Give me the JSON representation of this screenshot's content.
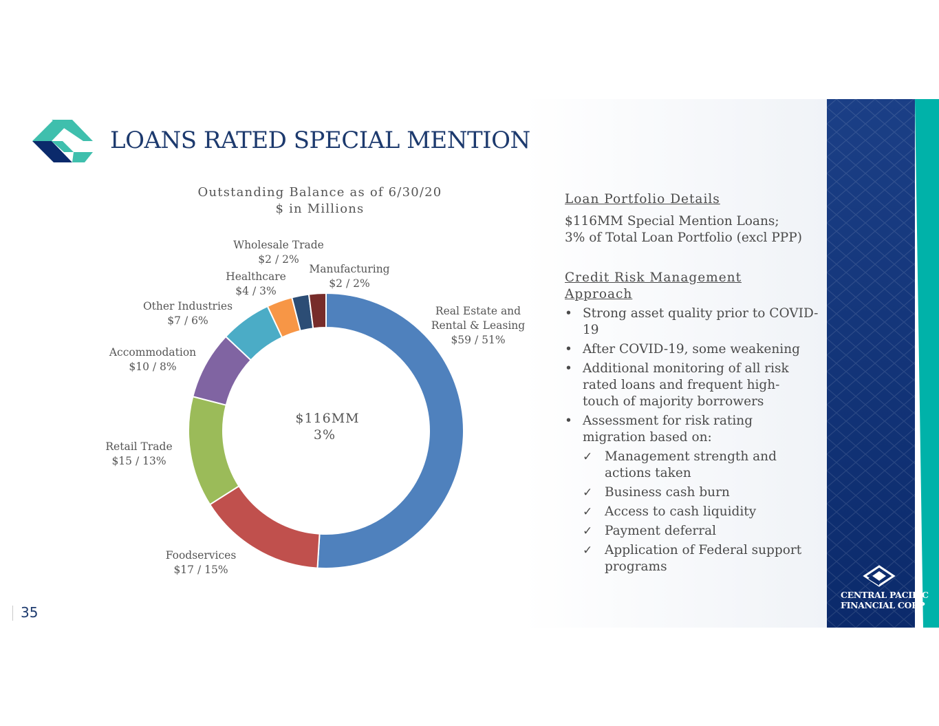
{
  "slide": {
    "title": "LOANS RATED SPECIAL MENTION",
    "page_number": "35"
  },
  "chart_data": {
    "type": "pie",
    "title": "Outstanding Balance as of 6/30/20",
    "subtitle": "$ in Millions",
    "center_label": [
      "$116MM",
      "3%"
    ],
    "unit": "$ in Millions",
    "slices": [
      {
        "name": "Real Estate and Rental & Leasing",
        "label_lines": [
          "Real Estate and",
          "Rental & Leasing",
          "$59 / 51%"
        ],
        "value": 59,
        "percent": 51,
        "color": "#4f81bd"
      },
      {
        "name": "Foodservices",
        "label_lines": [
          "Foodservices",
          "$17 / 15%"
        ],
        "value": 17,
        "percent": 15,
        "color": "#c0504d"
      },
      {
        "name": "Retail Trade",
        "label_lines": [
          "Retail Trade",
          "$15 / 13%"
        ],
        "value": 15,
        "percent": 13,
        "color": "#9bbb59"
      },
      {
        "name": "Accommodation",
        "label_lines": [
          "Accommodation",
          "$10 / 8%"
        ],
        "value": 10,
        "percent": 8,
        "color": "#8064a2"
      },
      {
        "name": "Other Industries",
        "label_lines": [
          "Other Industries",
          "$7 / 6%"
        ],
        "value": 7,
        "percent": 6,
        "color": "#4bacc6"
      },
      {
        "name": "Healthcare",
        "label_lines": [
          "Healthcare",
          "$4 / 3%"
        ],
        "value": 4,
        "percent": 3,
        "color": "#f79646"
      },
      {
        "name": "Wholesale Trade",
        "label_lines": [
          "Wholesale Trade",
          "$2 / 2%"
        ],
        "value": 2,
        "percent": 2,
        "color": "#2c4d75"
      },
      {
        "name": "Manufacturing",
        "label_lines": [
          "Manufacturing",
          "$2 / 2%"
        ],
        "value": 2,
        "percent": 2,
        "color": "#772c2a"
      }
    ]
  },
  "details": {
    "portfolio_heading": "Loan Portfolio Details",
    "portfolio_line1": "$116MM Special Mention Loans;",
    "portfolio_line2": "3% of Total Loan Portfolio (excl PPP)",
    "risk_heading": "Credit Risk Management Approach",
    "bullets": [
      "Strong asset quality prior to COVID-19",
      "After COVID-19, some weakening",
      "Additional monitoring of all risk rated loans and frequent high-touch of majority borrowers",
      "Assessment for risk rating migration based on:"
    ],
    "checks": [
      "Management strength and actions taken",
      "Business cash burn",
      "Access to cash liquidity",
      "Payment deferral",
      "Application of Federal support programs"
    ]
  },
  "brand": {
    "line1": "CENTRAL PACIFIC",
    "line2": "FINANCIAL CORP",
    "navy": "#0b2a6b",
    "teal": "#00b2a9"
  }
}
